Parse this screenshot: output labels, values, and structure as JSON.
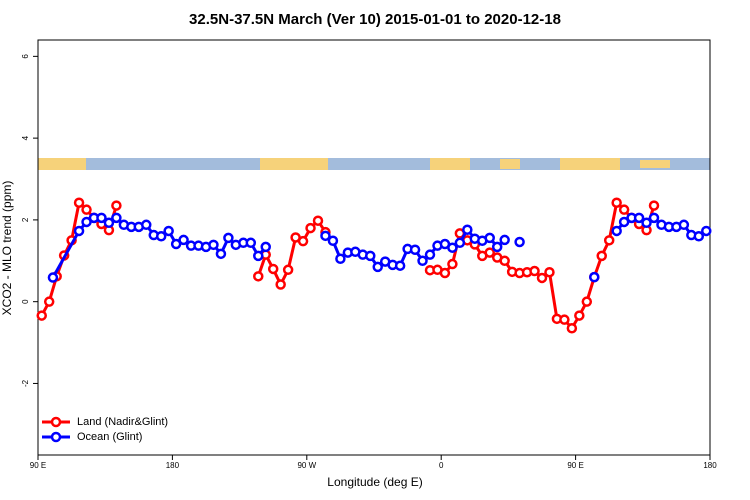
{
  "chart_data": {
    "type": "line",
    "title": "32.5N-37.5N March (Ver 10)   2015-01-01 to 2020-12-18",
    "x_label": "Longitude (deg E)",
    "y_label": "XCO2 - MLO trend (ppm)",
    "xlim": [
      90,
      540
    ],
    "ylim": [
      -3.75,
      6.4
    ],
    "xticks": [
      {
        "value": 90,
        "label": "90 E"
      },
      {
        "value": 180,
        "label": "180"
      },
      {
        "value": 270,
        "label": "90 W"
      },
      {
        "value": 360,
        "label": "0"
      },
      {
        "value": 450,
        "label": "90 E"
      },
      {
        "value": 540,
        "label": "180"
      }
    ],
    "yticks": [
      -2,
      0,
      2,
      4,
      6
    ],
    "legend": "bottom-left",
    "series": [
      {
        "name": "Land (Nadir&Glint)",
        "color": "#ff0000",
        "x": [
          92.5,
          97.5,
          102.5,
          107.5,
          112.5,
          117.5,
          122.5,
          127.5,
          132.5,
          137.5,
          142.5,
          null,
          237.5,
          242.5,
          247.5,
          252.5,
          257.5,
          262.5,
          267.5,
          272.5,
          277.5,
          282.5,
          null,
          352.5,
          357.5,
          362.5,
          367.5,
          372.5,
          377.5,
          382.5,
          387.5,
          392.5,
          397.5,
          402.5,
          407.5,
          412.5,
          417.5,
          422.5,
          427.5,
          432.5,
          437.5,
          442.5,
          447.5,
          452.5,
          457.5,
          462.5,
          467.5,
          472.5,
          477.5,
          482.5,
          487.5,
          492.5,
          497.5,
          502.5
        ],
        "values": [
          -0.34,
          0.0,
          0.62,
          1.13,
          1.5,
          2.42,
          2.25,
          2.05,
          1.9,
          1.75,
          2.35,
          null,
          0.62,
          1.15,
          0.8,
          0.42,
          0.78,
          1.57,
          1.48,
          1.8,
          1.98,
          1.7,
          null,
          0.77,
          0.78,
          0.7,
          0.92,
          1.67,
          1.5,
          1.4,
          1.12,
          1.2,
          1.08,
          1.0,
          0.73,
          0.7,
          0.72,
          0.75,
          0.58,
          0.72,
          -0.42,
          -0.44,
          -0.65,
          -0.34,
          0.0,
          0.6,
          1.12,
          1.5,
          2.42,
          2.25,
          2.05,
          1.9,
          1.75,
          2.35
        ]
      },
      {
        "name": "Ocean (Glint)",
        "color": "#0000ff",
        "x": [
          100,
          117.5,
          122.5,
          127.5,
          132.5,
          137.5,
          142.5,
          147.5,
          152.5,
          157.5,
          162.5,
          167.5,
          172.5,
          177.5,
          182.5,
          187.5,
          192.5,
          197.5,
          202.5,
          207.5,
          212.5,
          217.5,
          222.5,
          227.5,
          232.5,
          237.5,
          242.5,
          null,
          282.5,
          287.5,
          292.5,
          297.5,
          302.5,
          307.5,
          312.5,
          317.5,
          322.5,
          327.5,
          332.5,
          337.5,
          342.5,
          347.5,
          352.5,
          357.5,
          362.5,
          367.5,
          372.5,
          377.5,
          382.5,
          387.5,
          392.5,
          397.5,
          402.5,
          null,
          412.5,
          null,
          462.5,
          null,
          477.5,
          482.5,
          487.5,
          492.5,
          497.5,
          502.5,
          507.5,
          512.5,
          517.5,
          522.5,
          527.5,
          532.5,
          537.5
        ],
        "values": [
          0.59,
          1.73,
          1.95,
          2.05,
          2.05,
          1.93,
          2.05,
          1.88,
          1.83,
          1.83,
          1.88,
          1.63,
          1.6,
          1.73,
          1.41,
          1.51,
          1.37,
          1.37,
          1.34,
          1.39,
          1.17,
          1.56,
          1.39,
          1.44,
          1.44,
          1.12,
          1.34,
          null,
          1.61,
          1.49,
          1.05,
          1.2,
          1.22,
          1.15,
          1.12,
          0.85,
          0.98,
          0.9,
          0.88,
          1.29,
          1.27,
          1.0,
          1.15,
          1.37,
          1.41,
          1.32,
          1.44,
          1.76,
          1.54,
          1.49,
          1.56,
          1.34,
          1.51,
          null,
          1.46,
          null,
          0.6,
          null,
          1.73,
          1.95,
          2.05,
          2.05,
          1.93,
          2.05,
          1.88,
          1.83,
          1.83,
          1.88,
          1.63,
          1.6,
          1.73
        ]
      }
    ]
  }
}
